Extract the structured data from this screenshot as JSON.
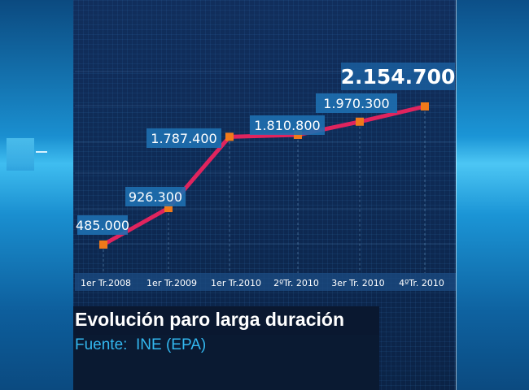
{
  "chart_data": {
    "type": "line",
    "categories": [
      "1er Tr.2008",
      "1er Tr.2009",
      "1er Tr.2010",
      "2ºTr. 2010",
      "3er Tr. 2010",
      "4ºTr. 2010"
    ],
    "values": [
      485000,
      926300,
      1787400,
      1810800,
      1970300,
      2154700
    ],
    "value_labels": [
      "485.000",
      "926.300",
      "1.787.400",
      "1.810.800",
      "1.970.300",
      "2.154.700"
    ],
    "title": "Evolución paro larga duración",
    "source": "Fuente:  INE (EPA)",
    "colors": {
      "line": "#e0245e",
      "marker": "#f07a1a",
      "label_bg": "#1e6fb0"
    }
  }
}
